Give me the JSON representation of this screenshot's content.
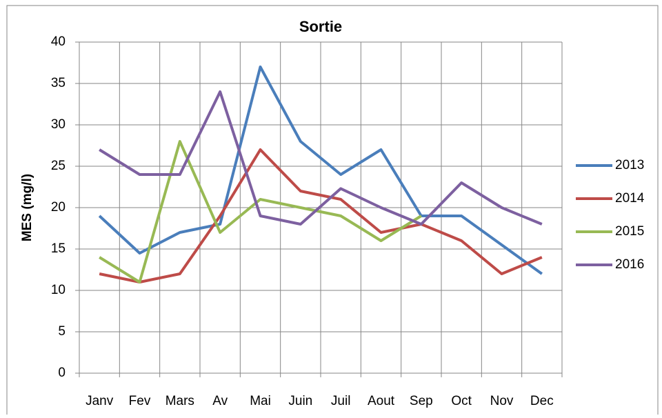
{
  "chart_data": {
    "type": "line",
    "title": "Sortie",
    "y_label": "MES (mg/l)",
    "categories": [
      "Janv",
      "Fev",
      "Mars",
      "Av",
      "Mai",
      "Juin",
      "Juil",
      "Aout",
      "Sep",
      "Oct",
      "Nov",
      "Dec"
    ],
    "series": [
      {
        "name": "2013",
        "color": "#4a7ebb",
        "values": [
          19,
          14.5,
          17,
          18,
          37,
          28,
          24,
          27,
          19,
          19,
          15.5,
          12
        ]
      },
      {
        "name": "2014",
        "color": "#be4b48",
        "values": [
          12,
          11,
          12,
          19,
          27,
          22,
          21,
          17,
          18,
          16,
          12,
          14
        ]
      },
      {
        "name": "2015",
        "color": "#98b954",
        "values": [
          14,
          11,
          28,
          17,
          21,
          20,
          19,
          16,
          19,
          null,
          null,
          null
        ]
      },
      {
        "name": "2016",
        "color": "#7d60a0",
        "values": [
          27,
          24,
          24,
          34,
          19,
          18,
          22.3,
          20,
          18,
          23,
          20,
          18
        ]
      }
    ],
    "ylim": [
      0,
      40
    ],
    "yticks": [
      0,
      5,
      10,
      15,
      20,
      25,
      30,
      35,
      40
    ],
    "grid": true,
    "legend": "right"
  }
}
